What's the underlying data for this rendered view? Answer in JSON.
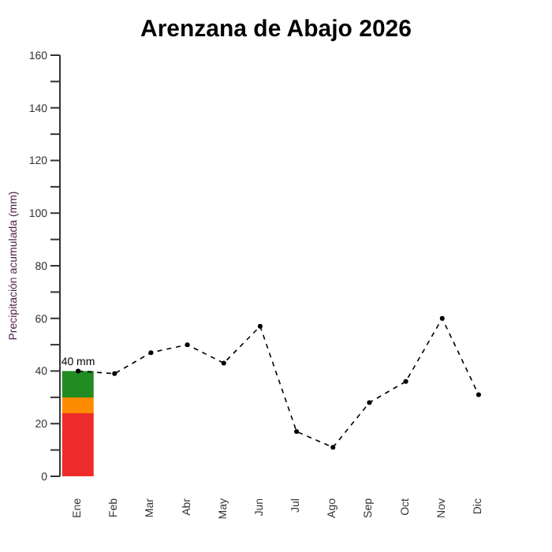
{
  "chart_data": {
    "type": "bar",
    "title": "Arenzana de Abajo 2026",
    "ylabel": "Precipitación acumulada (mm)",
    "categories": [
      "Ene",
      "Feb",
      "Mar",
      "Abr",
      "May",
      "Jun",
      "Jul",
      "Ago",
      "Sep",
      "Oct",
      "Nov",
      "Dic"
    ],
    "stacked": true,
    "series": [
      {
        "color": "#ee2c2c",
        "values": [
          24,
          null,
          null,
          null,
          null,
          null,
          null,
          null,
          null,
          null,
          null,
          null
        ]
      },
      {
        "color": "#ff8c00",
        "values": [
          6,
          null,
          null,
          null,
          null,
          null,
          null,
          null,
          null,
          null,
          null,
          null
        ]
      },
      {
        "color": "#228b22",
        "values": [
          10,
          null,
          null,
          null,
          null,
          null,
          null,
          null,
          null,
          null,
          null,
          null
        ]
      },
      {
        "type": "line",
        "color": "#000000",
        "marker": "circle",
        "line_style": "dashed",
        "values": [
          40,
          39,
          47,
          50,
          43,
          57,
          17,
          11,
          28,
          36,
          60,
          31
        ]
      }
    ],
    "ylim": [
      0,
      160
    ],
    "yticks": [
      0,
      {
        "value": 10,
        "label": null
      },
      20,
      {
        "value": 30,
        "label": null
      },
      40,
      {
        "value": 50,
        "label": null
      },
      60,
      {
        "value": 70,
        "label": null
      },
      80,
      {
        "value": 90,
        "label": null
      },
      100,
      {
        "value": 110,
        "label": null
      },
      120,
      {
        "value": 130,
        "label": null
      },
      140,
      {
        "value": 150,
        "label": null
      },
      160
    ],
    "annotations": [
      {
        "text": "40 mm",
        "x": "Ene",
        "y": 40
      }
    ],
    "grid": false,
    "legend": false
  }
}
